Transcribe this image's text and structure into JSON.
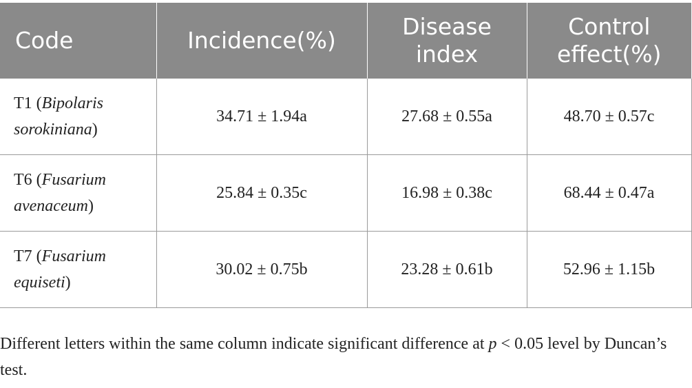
{
  "table": {
    "headers": [
      {
        "line1": "Code",
        "line2": ""
      },
      {
        "line1": "Incidence(%)",
        "line2": ""
      },
      {
        "line1": "Disease",
        "line2": "index"
      },
      {
        "line1": "Control",
        "line2": "effect(%)"
      }
    ],
    "rows": [
      {
        "code_prefix": "T1 (",
        "code_species": "Bipolaris sorokiniana",
        "code_suffix": ")",
        "incidence": "34.71 ± 1.94a",
        "disease_index": "27.68 ± 0.55a",
        "control_effect": "48.70 ± 0.57c"
      },
      {
        "code_prefix": "T6 (",
        "code_species": "Fusarium avenaceum",
        "code_suffix": ")",
        "incidence": "25.84 ± 0.35c",
        "disease_index": "16.98 ± 0.38c",
        "control_effect": "68.44 ± 0.47a"
      },
      {
        "code_prefix": "T7 (",
        "code_species": "Fusarium equiseti",
        "code_suffix": ")",
        "incidence": "30.02 ± 0.75b",
        "disease_index": "23.28 ± 0.61b",
        "control_effect": "52.96 ± 1.15b"
      }
    ]
  },
  "footnote": {
    "before": "Different letters within the same column indicate significant difference at ",
    "variable": "p",
    "after": " < 0.05 level by Duncan’s test."
  }
}
